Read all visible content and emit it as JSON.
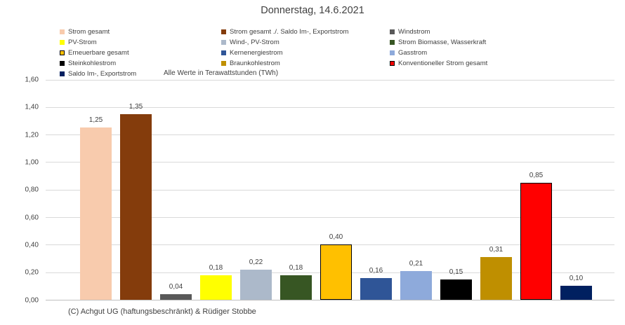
{
  "title": "Donnerstag, 14.6.2021",
  "units_note": "Alle Werte in Terawattstunden (TWh)",
  "footer": "(C) Achgut UG (haftungsbeschränkt) & Rüdiger Stobbe",
  "colors": {
    "text": "#404040",
    "gridline": "#d9d9d9",
    "axis_line": "#bfbfbf",
    "background": "#ffffff"
  },
  "legend": {
    "columns": [
      {
        "items": [
          {
            "label": "Strom gesamt",
            "color": "#F8CBAD",
            "border": false
          },
          {
            "label": "PV-Strom",
            "color": "#FFFF00",
            "border": false
          },
          {
            "label": "Erneuerbare gesamt",
            "color": "#FFC000",
            "border": true
          },
          {
            "label": "Steinkohlestrom",
            "color": "#000000",
            "border": false
          },
          {
            "label": "Saldo Im-, Exportstrom",
            "color": "#002060",
            "border": false
          }
        ]
      },
      {
        "items": [
          {
            "label": "Strom gesamt ./. Saldo Im-, Exportstrom",
            "color": "#843C0C",
            "border": false
          },
          {
            "label": "Wind-, PV-Strom",
            "color": "#ACB9CA",
            "border": false
          },
          {
            "label": "Kernenergiestrom",
            "color": "#2F5597",
            "border": false
          },
          {
            "label": "Braunkohlestrom",
            "color": "#BF8F00",
            "border": false
          }
        ]
      },
      {
        "items": [
          {
            "label": "Windstrom",
            "color": "#595959",
            "border": false
          },
          {
            "label": "Strom Biomasse, Wasserkraft",
            "color": "#375623",
            "border": false
          },
          {
            "label": "Gasstrom",
            "color": "#8EAADB",
            "border": false
          },
          {
            "label": "Konventioneller Strom gesamt",
            "color": "#FF0000",
            "border": true
          }
        ]
      }
    ]
  },
  "chart_data": {
    "type": "bar",
    "title": "Donnerstag, 14.6.2021",
    "xlabel": "",
    "ylabel": "",
    "unit": "TWh",
    "ylim": [
      0,
      1.6
    ],
    "ytick_step": 0.2,
    "ytick_labels": [
      "0,00",
      "0,20",
      "0,40",
      "0,60",
      "0,80",
      "1,00",
      "1,20",
      "1,40",
      "1,60"
    ],
    "grid": true,
    "legend_position": "top",
    "series": [
      {
        "name": "Strom gesamt",
        "value": 1.25,
        "label": "1,25",
        "color": "#F8CBAD",
        "border": false
      },
      {
        "name": "Strom gesamt ./. Saldo Im-, Exportstrom",
        "value": 1.35,
        "label": "1,35",
        "color": "#843C0C",
        "border": false
      },
      {
        "name": "Windstrom",
        "value": 0.04,
        "label": "0,04",
        "color": "#595959",
        "border": false
      },
      {
        "name": "PV-Strom",
        "value": 0.18,
        "label": "0,18",
        "color": "#FFFF00",
        "border": false
      },
      {
        "name": "Wind-, PV-Strom",
        "value": 0.22,
        "label": "0,22",
        "color": "#ACB9CA",
        "border": false
      },
      {
        "name": "Strom Biomasse, Wasserkraft",
        "value": 0.18,
        "label": "0,18",
        "color": "#375623",
        "border": false
      },
      {
        "name": "Erneuerbare gesamt",
        "value": 0.4,
        "label": "0,40",
        "color": "#FFC000",
        "border": true
      },
      {
        "name": "Kernenergiestrom",
        "value": 0.16,
        "label": "0,16",
        "color": "#2F5597",
        "border": false
      },
      {
        "name": "Gasstrom",
        "value": 0.21,
        "label": "0,21",
        "color": "#8EAADB",
        "border": false
      },
      {
        "name": "Steinkohlestrom",
        "value": 0.15,
        "label": "0,15",
        "color": "#000000",
        "border": false
      },
      {
        "name": "Braunkohlestrom",
        "value": 0.31,
        "label": "0,31",
        "color": "#BF8F00",
        "border": false
      },
      {
        "name": "Konventioneller Strom gesamt",
        "value": 0.85,
        "label": "0,85",
        "color": "#FF0000",
        "border": true
      },
      {
        "name": "Saldo Im-, Exportstrom",
        "value": 0.1,
        "label": "0,10",
        "color": "#002060",
        "border": false
      }
    ]
  }
}
